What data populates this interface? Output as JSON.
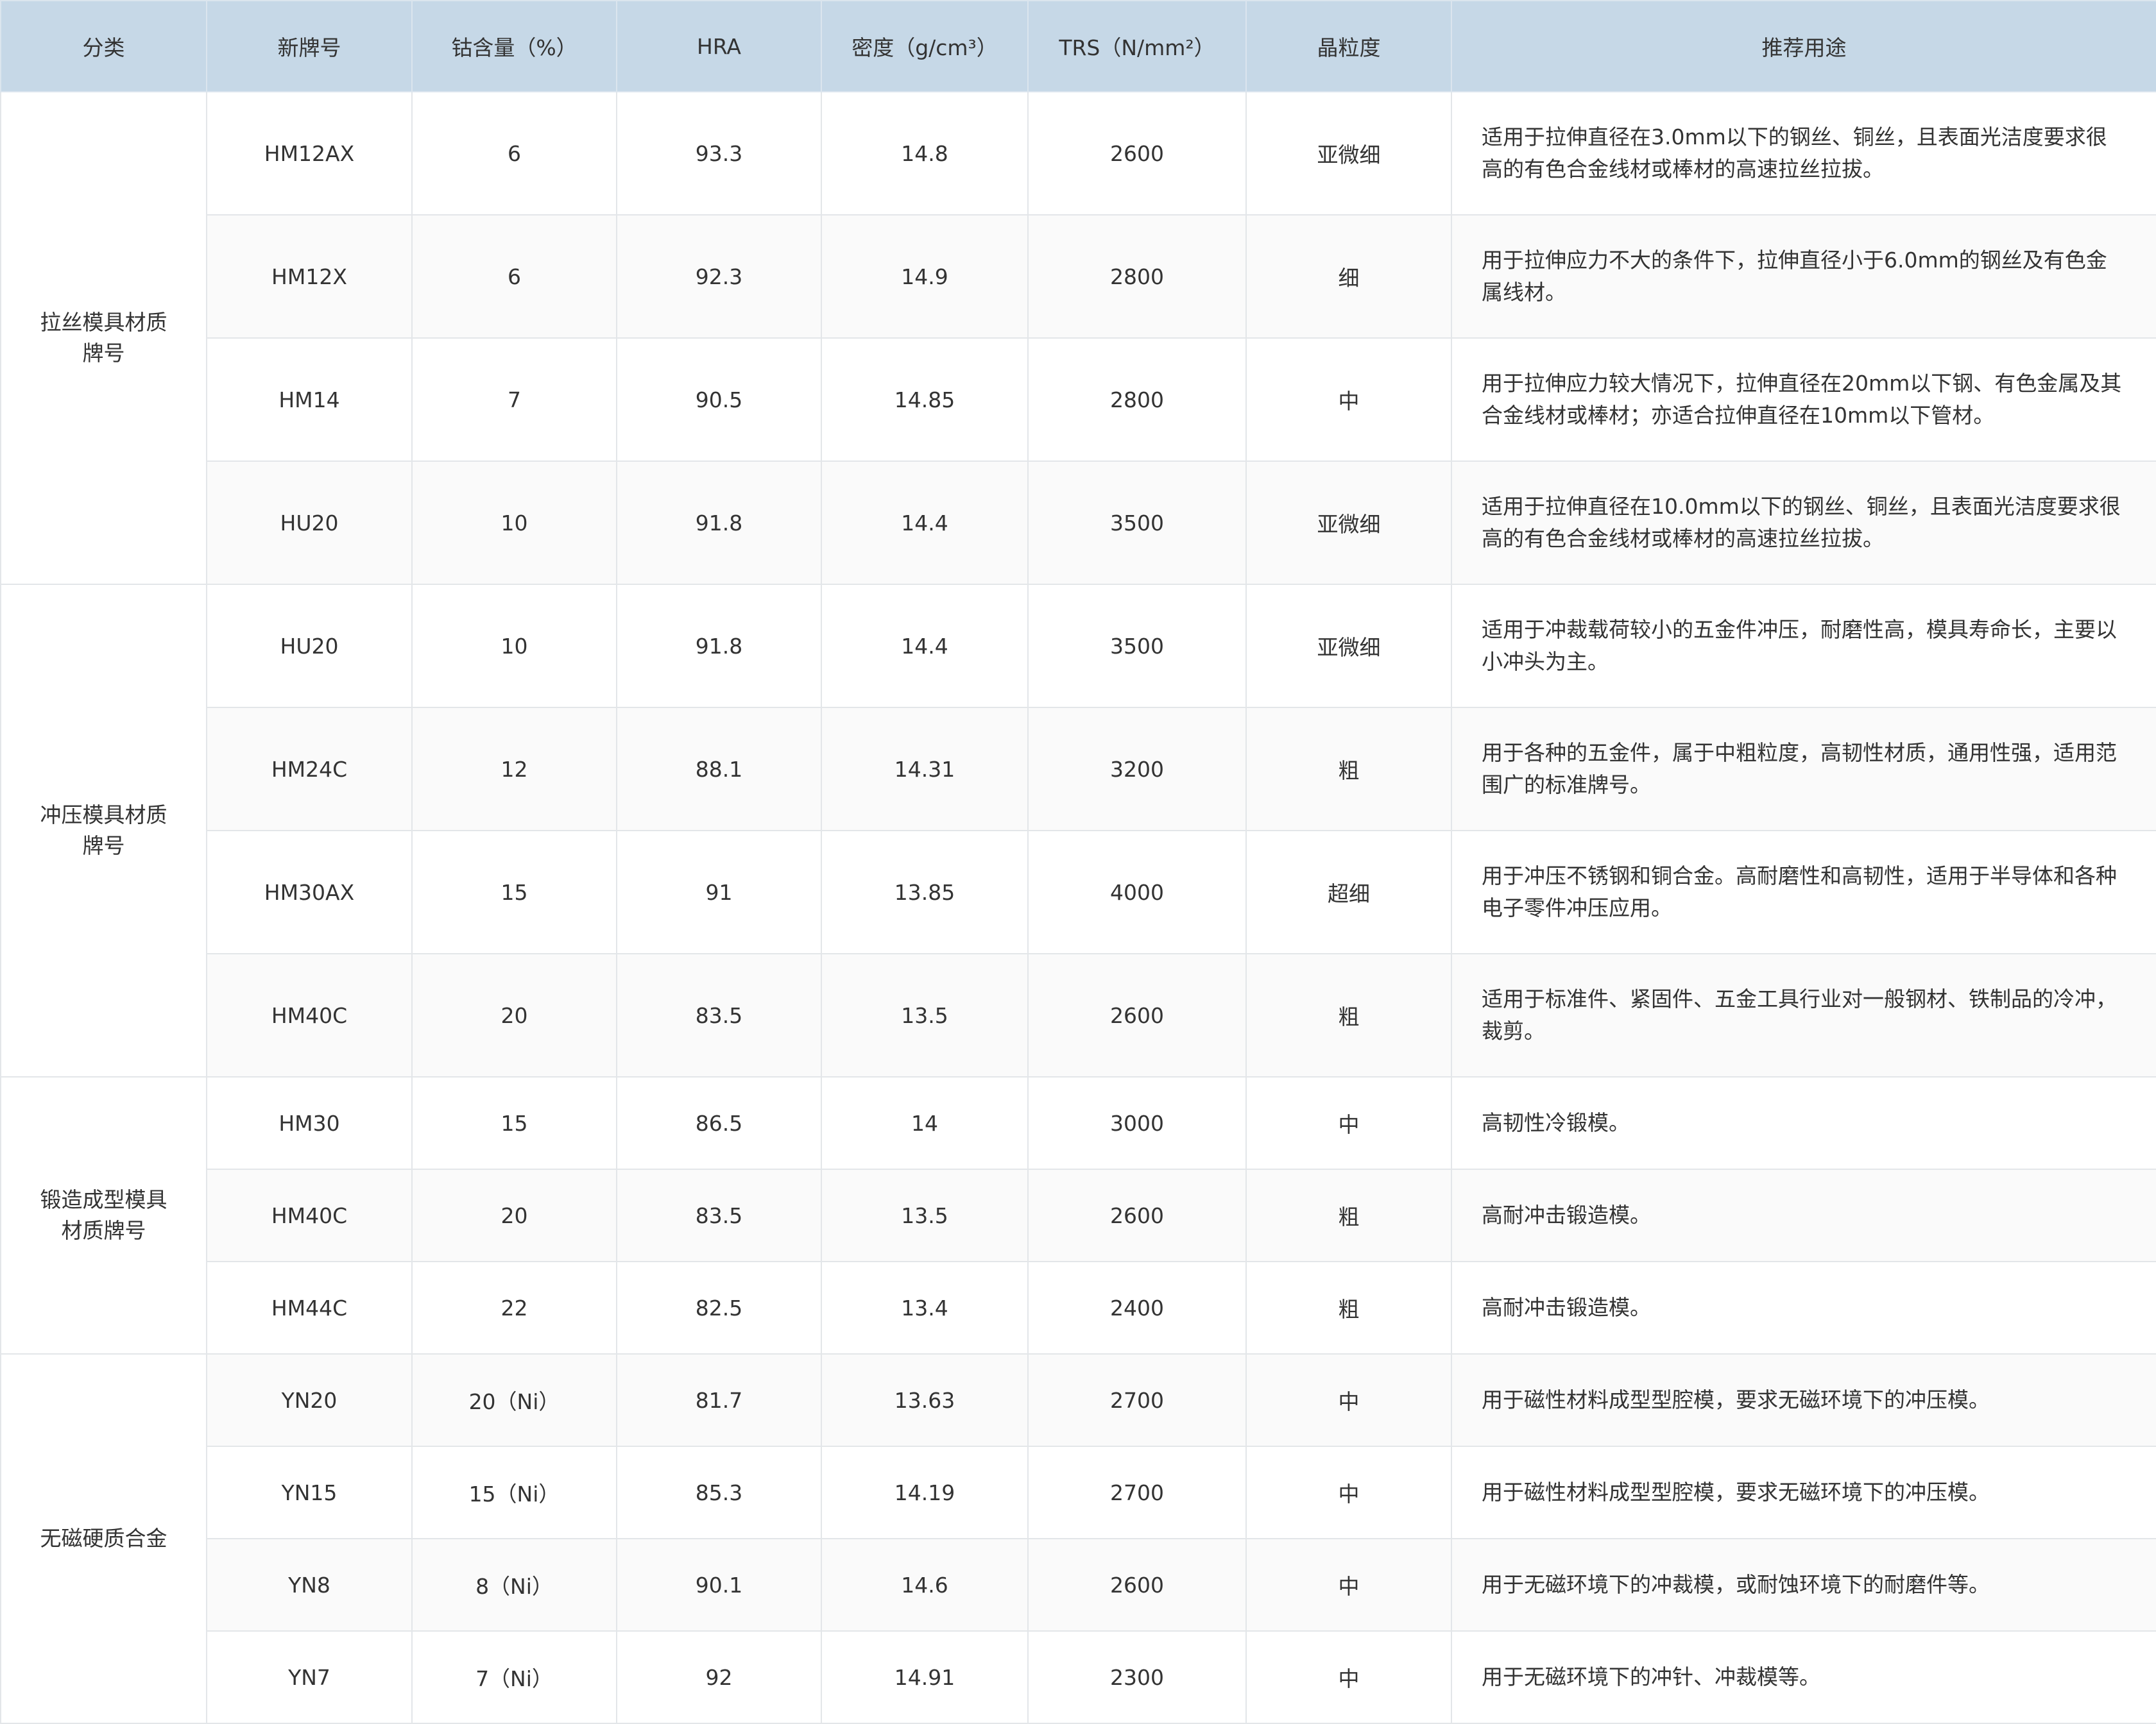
{
  "table": {
    "headers": [
      "分类",
      "新牌号",
      "钴含量（%）",
      "HRA",
      "密度（g/cm³）",
      "TRS（N/mm²）",
      "晶粒度",
      "推荐用途"
    ],
    "groups": [
      {
        "category": "拉丝模具材质牌号",
        "rows": [
          [
            "HM12AX",
            "6",
            "93.3",
            "14.8",
            "2600",
            "亚微细",
            "适用于拉伸直径在3.0mm以下的钢丝、铜丝，且表面光洁度要求很高的有色合金线材或棒材的高速拉丝拉拔。"
          ],
          [
            "HM12X",
            "6",
            "92.3",
            "14.9",
            "2800",
            "细",
            "用于拉伸应力不大的条件下，拉伸直径小于6.0mm的钢丝及有色金属线材。"
          ],
          [
            "HM14",
            "7",
            "90.5",
            "14.85",
            "2800",
            "中",
            "用于拉伸应力较大情况下，拉伸直径在20mm以下钢、有色金属及其合金线材或棒材；亦适合拉伸直径在10mm以下管材。"
          ],
          [
            "HU20",
            "10",
            "91.8",
            "14.4",
            "3500",
            "亚微细",
            "适用于拉伸直径在10.0mm以下的钢丝、铜丝，且表面光洁度要求很高的有色合金线材或棒材的高速拉丝拉拔。"
          ]
        ]
      },
      {
        "category": "冲压模具材质牌号",
        "rows": [
          [
            "HU20",
            "10",
            "91.8",
            "14.4",
            "3500",
            "亚微细",
            "适用于冲裁载荷较小的五金件冲压，耐磨性高，模具寿命长，主要以小冲头为主。"
          ],
          [
            "HM24C",
            "12",
            "88.1",
            "14.31",
            "3200",
            "粗",
            "用于各种的五金件，属于中粗粒度，高韧性材质，通用性强，适用范围广的标准牌号。"
          ],
          [
            "HM30AX",
            "15",
            "91",
            "13.85",
            "4000",
            "超细",
            "用于冲压不锈钢和铜合金。高耐磨性和高韧性，适用于半导体和各种电子零件冲压应用。"
          ],
          [
            "HM40C",
            "20",
            "83.5",
            "13.5",
            "2600",
            "粗",
            "适用于标准件、紧固件、五金工具行业对一般钢材、铁制品的冷冲，裁剪。"
          ]
        ]
      },
      {
        "category": "锻造成型模具材质牌号",
        "rows": [
          [
            "HM30",
            "15",
            "86.5",
            "14",
            "3000",
            "中",
            "高韧性冷锻模。"
          ],
          [
            "HM40C",
            "20",
            "83.5",
            "13.5",
            "2600",
            "粗",
            "高耐冲击锻造模。"
          ],
          [
            "HM44C",
            "22",
            "82.5",
            "13.4",
            "2400",
            "粗",
            "高耐冲击锻造模。"
          ]
        ]
      },
      {
        "category": "无磁硬质合金",
        "rows": [
          [
            "YN20",
            "20（Ni）",
            "81.7",
            "13.63",
            "2700",
            "中",
            "用于磁性材料成型型腔模，要求无磁环境下的冲压模。"
          ],
          [
            "YN15",
            "15（Ni）",
            "85.3",
            "14.19",
            "2700",
            "中",
            "用于磁性材料成型型腔模，要求无磁环境下的冲压模。"
          ],
          [
            "YN8",
            "8（Ni）",
            "90.1",
            "14.6",
            "2600",
            "中",
            "用于无磁环境下的冲裁模，或耐蚀环境下的耐磨件等。"
          ],
          [
            "YN7",
            "7（Ni）",
            "92",
            "14.91",
            "2300",
            "中",
            "用于无磁环境下的冲针、冲裁模等。"
          ]
        ]
      }
    ]
  }
}
